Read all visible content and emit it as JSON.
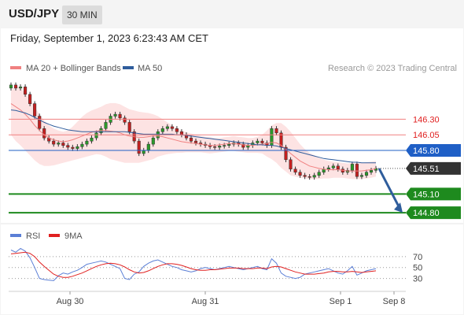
{
  "header": {
    "symbol": "USD/JPY",
    "interval": "30 MIN",
    "datetime": "Friday, September 1, 2023 6:23:43 AM CET"
  },
  "legend": {
    "ma20_label": "MA 20 + Bollinger Bands",
    "ma50_label": "MA 50",
    "credit": "Research © 2023 Trading Central",
    "rsi_label": "RSI",
    "rsi_ma_label": "9MA"
  },
  "colors": {
    "ma20": "#f08080",
    "ma50": "#2f5d9c",
    "bands_fill": "#fde3e3",
    "resistance": "#f08080",
    "pivot": "#1f5fc6",
    "support": "#1e8a1e",
    "last_price": "#333333",
    "rsi": "#5b7fd6",
    "rsi_ma": "#e02020",
    "candle_up": "#2a9a2a",
    "candle_down": "#c42020",
    "arrow": "#2f5d9c"
  },
  "chart_data": {
    "type": "candlestick",
    "title": "USD/JPY",
    "interval": "30 MIN",
    "x_ticks": [
      "Aug 30",
      "Aug 31",
      "Sep 1",
      "Sep 8"
    ],
    "ylim": [
      144.7,
      146.95
    ],
    "levels": [
      {
        "value": 146.3,
        "label": "146.30",
        "kind": "resistance"
      },
      {
        "value": 146.05,
        "label": "146.05",
        "kind": "resistance"
      },
      {
        "value": 145.8,
        "label": "145.80",
        "kind": "pivot"
      },
      {
        "value": 145.1,
        "label": "145.10",
        "kind": "support"
      },
      {
        "value": 144.8,
        "label": "144.80",
        "kind": "support"
      }
    ],
    "last_price": {
      "value": 145.51,
      "label": "145.51"
    },
    "price_closes": [
      146.85,
      146.8,
      146.82,
      146.7,
      146.55,
      146.35,
      146.15,
      146.0,
      145.95,
      145.9,
      145.92,
      145.88,
      145.85,
      145.83,
      145.86,
      145.9,
      145.95,
      146.0,
      146.08,
      146.15,
      146.25,
      146.35,
      146.38,
      146.32,
      146.25,
      146.1,
      145.95,
      145.75,
      145.8,
      145.9,
      146.0,
      146.1,
      146.15,
      146.18,
      146.15,
      146.1,
      146.05,
      146.0,
      145.95,
      145.92,
      145.9,
      145.88,
      145.86,
      145.85,
      145.87,
      145.88,
      145.9,
      145.92,
      145.9,
      145.85,
      145.88,
      145.92,
      145.95,
      145.92,
      145.88,
      146.15,
      146.08,
      145.85,
      145.65,
      145.5,
      145.45,
      145.4,
      145.38,
      145.37,
      145.4,
      145.45,
      145.5,
      145.52,
      145.55,
      145.5,
      145.45,
      145.48,
      145.58,
      145.38,
      145.4,
      145.45,
      145.48,
      145.51
    ],
    "ma20": [
      146.55,
      146.5,
      146.45,
      146.38,
      146.3,
      146.2,
      146.12,
      146.05,
      146.0,
      145.97,
      145.95,
      145.94,
      145.95,
      145.97,
      146.0,
      146.03,
      146.06,
      146.09,
      146.11,
      146.12,
      146.12,
      146.11,
      146.1,
      146.08,
      146.05,
      146.03,
      146.02,
      146.01,
      146.01,
      146.02,
      146.03,
      146.03,
      146.02,
      146.0,
      145.98,
      145.96,
      145.94,
      145.93,
      145.92,
      145.91,
      145.9,
      145.89,
      145.88,
      145.88,
      145.89,
      145.9,
      145.91,
      145.91,
      145.9,
      145.89,
      145.88,
      145.88,
      145.89,
      145.9,
      145.91,
      145.93,
      145.92,
      145.88,
      145.82,
      145.75,
      145.69,
      145.63,
      145.59,
      145.55,
      145.53,
      145.51,
      145.5,
      145.49,
      145.49,
      145.49,
      145.48,
      145.47,
      145.47,
      145.47,
      145.47,
      145.48,
      145.49,
      145.51
    ],
    "ma50": [
      146.45,
      146.44,
      146.42,
      146.4,
      146.37,
      146.33,
      146.29,
      146.25,
      146.22,
      146.19,
      146.17,
      146.15,
      146.13,
      146.12,
      146.11,
      146.1,
      146.1,
      146.1,
      146.1,
      146.1,
      146.1,
      146.1,
      146.1,
      146.1,
      146.1,
      146.09,
      146.08,
      146.07,
      146.06,
      146.06,
      146.06,
      146.06,
      146.06,
      146.06,
      146.06,
      146.05,
      146.05,
      146.04,
      146.03,
      146.02,
      146.01,
      146.0,
      145.99,
      145.98,
      145.97,
      145.96,
      145.95,
      145.94,
      145.93,
      145.92,
      145.91,
      145.9,
      145.89,
      145.89,
      145.88,
      145.88,
      145.87,
      145.85,
      145.83,
      145.81,
      145.79,
      145.77,
      145.75,
      145.73,
      145.71,
      145.69,
      145.67,
      145.66,
      145.65,
      145.64,
      145.63,
      145.62,
      145.61,
      145.61,
      145.6,
      145.6,
      145.6,
      145.6
    ],
    "bb_upper": [
      146.75,
      146.85,
      146.8,
      146.72,
      146.62,
      146.5,
      146.38,
      146.28,
      146.2,
      146.15,
      146.12,
      146.1,
      146.12,
      146.18,
      146.26,
      146.34,
      146.4,
      146.44,
      146.47,
      146.5,
      146.54,
      146.56,
      146.56,
      146.54,
      146.5,
      146.46,
      146.44,
      146.42,
      146.41,
      146.4,
      146.38,
      146.35,
      146.3,
      146.25,
      146.2,
      146.16,
      146.12,
      146.09,
      146.07,
      146.05,
      146.03,
      146.02,
      146.01,
      146.0,
      146.0,
      146.01,
      146.02,
      146.03,
      146.02,
      146.01,
      146.0,
      146.0,
      146.02,
      146.05,
      146.12,
      146.2,
      146.24,
      146.24,
      146.18,
      146.1,
      146.0,
      145.9,
      145.82,
      145.76,
      145.72,
      145.68,
      145.65,
      145.63,
      145.62,
      145.61,
      145.6,
      145.59,
      145.6,
      145.6,
      145.6,
      145.61,
      145.62,
      145.63
    ],
    "bb_lower": [
      146.05,
      145.95,
      145.88,
      145.8,
      145.72,
      145.64,
      145.58,
      145.55,
      145.55,
      145.56,
      145.58,
      145.6,
      145.62,
      145.64,
      145.66,
      145.68,
      145.7,
      145.72,
      145.74,
      145.73,
      145.7,
      145.66,
      145.64,
      145.62,
      145.6,
      145.6,
      145.6,
      145.6,
      145.62,
      145.64,
      145.66,
      145.7,
      145.72,
      145.74,
      145.75,
      145.76,
      145.76,
      145.77,
      145.77,
      145.77,
      145.77,
      145.76,
      145.75,
      145.76,
      145.77,
      145.78,
      145.79,
      145.79,
      145.78,
      145.77,
      145.76,
      145.76,
      145.76,
      145.75,
      145.7,
      145.66,
      145.6,
      145.52,
      145.46,
      145.4,
      145.38,
      145.36,
      145.35,
      145.34,
      145.34,
      145.34,
      145.35,
      145.35,
      145.36,
      145.36,
      145.36,
      145.35,
      145.34,
      145.34,
      145.34,
      145.35,
      145.36,
      145.38
    ],
    "forecast_arrow": {
      "from": 145.51,
      "to": 144.8
    },
    "rsi": {
      "ticks": [
        70,
        50,
        30
      ],
      "ylim": [
        15,
        90
      ],
      "rsi_values": [
        82,
        78,
        85,
        80,
        68,
        50,
        30,
        28,
        27,
        26,
        35,
        40,
        38,
        42,
        45,
        50,
        56,
        58,
        60,
        62,
        60,
        56,
        52,
        48,
        30,
        28,
        38,
        42,
        52,
        58,
        62,
        64,
        60,
        56,
        52,
        50,
        46,
        44,
        42,
        44,
        48,
        50,
        48,
        46,
        48,
        50,
        52,
        50,
        48,
        46,
        48,
        50,
        52,
        48,
        46,
        66,
        58,
        40,
        34,
        32,
        30,
        32,
        38,
        40,
        42,
        44,
        46,
        48,
        44,
        40,
        38,
        44,
        52,
        36,
        40,
        44,
        46,
        48
      ],
      "ma9_values": [
        75,
        76,
        77,
        78,
        76,
        70,
        60,
        52,
        45,
        38,
        34,
        32,
        32,
        34,
        37,
        40,
        44,
        48,
        52,
        55,
        57,
        58,
        57,
        55,
        51,
        46,
        42,
        40,
        41,
        44,
        48,
        52,
        55,
        57,
        57,
        56,
        54,
        51,
        48,
        46,
        45,
        45,
        46,
        46,
        47,
        48,
        49,
        49,
        49,
        48,
        48,
        48,
        49,
        49,
        48,
        51,
        52,
        51,
        48,
        45,
        42,
        40,
        38,
        38,
        38,
        39,
        40,
        42,
        43,
        43,
        42,
        42,
        43,
        42,
        41,
        42,
        43,
        44
      ]
    }
  }
}
